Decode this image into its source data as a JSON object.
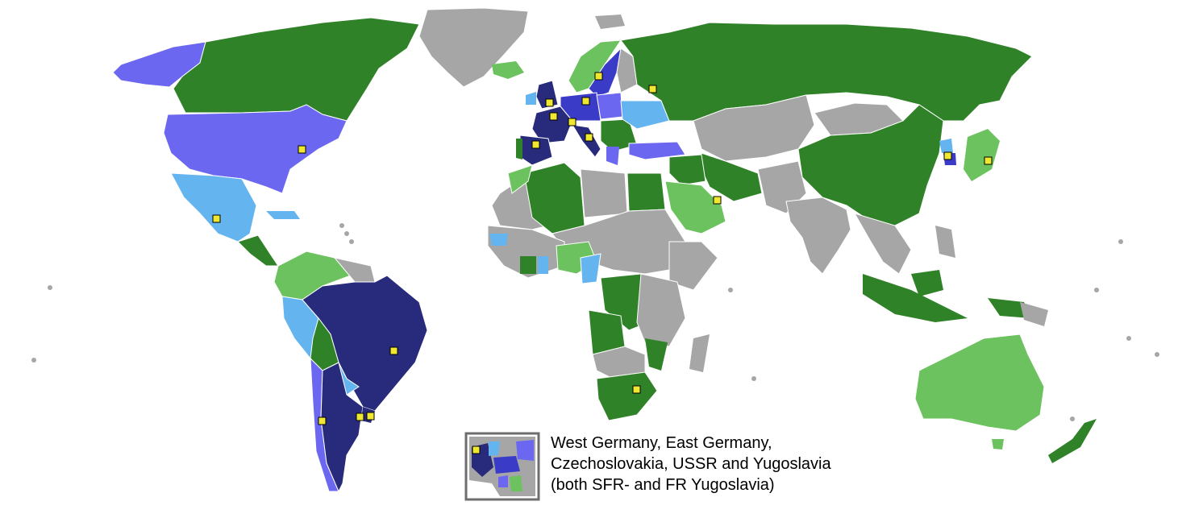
{
  "map": {
    "colors": {
      "ocean": "#ffffff",
      "other": "#a6a6a6",
      "border": "#ffffff",
      "dark_navy": "#282a7c",
      "blue": "#3a3cc8",
      "periwinkle": "#6b67f0",
      "light_blue": "#64b4f0",
      "dark_green": "#308228",
      "light_green": "#6cc25e",
      "marker_fill": "#f0e830",
      "marker_stroke": "#000000"
    },
    "legend_note": {
      "lines": [
        "West Germany, East Germany,",
        "Czechoslovakia, USSR and Yugoslavia",
        "(both SFR- and FR Yugoslavia)"
      ]
    }
  }
}
